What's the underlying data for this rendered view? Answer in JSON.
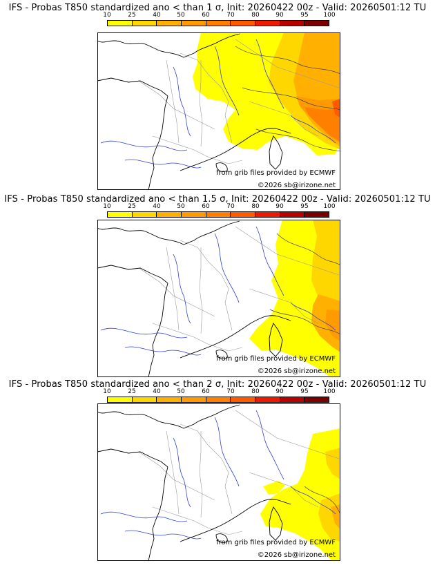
{
  "legend": {
    "labels": [
      "10",
      "25",
      "40",
      "50",
      "60",
      "70",
      "80",
      "90",
      "95",
      "100"
    ],
    "colors": [
      "#ffff00",
      "#ffd700",
      "#ffb000",
      "#ff9a00",
      "#ff8000",
      "#ff5a00",
      "#ee1a00",
      "#b80000",
      "#7a0000"
    ]
  },
  "colors": {
    "background": "#ffffff",
    "sea": "#ffffff",
    "coastline": "#000000",
    "rivers": "#2f3fd6",
    "borders": "#9a9a9a",
    "contours": "#444444"
  },
  "panels": [
    {
      "title": "IFS - Probas T850  standardized ano < than 1 σ, Init: 20260422 00z - Valid: 20260501:12 TU",
      "credit_data": "from grib files provided by ECMWF",
      "credit_copyright": "©2026 sb@irizone.net"
    },
    {
      "title": "IFS - Probas T850  standardized ano < than 1.5 σ, Init: 20260422 00z - Valid: 20260501:12 TU",
      "credit_data": "from grib files provided by ECMWF",
      "credit_copyright": "©2026 sb@irizone.net"
    },
    {
      "title": "IFS - Probas T850  standardized ano < than 2 σ, Init: 20260422 00z - Valid: 20260501:12 TU",
      "credit_data": "from grib files provided by ECMWF",
      "credit_copyright": "©2026 sb@irizone.net"
    }
  ]
}
